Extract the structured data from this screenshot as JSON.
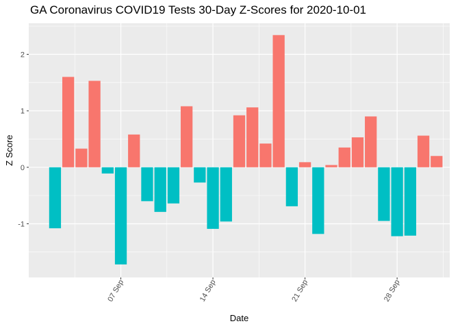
{
  "chart_data": {
    "type": "bar",
    "title": "GA Coronavirus COVID19 Tests 30-Day Z-Scores for 2020-10-01",
    "xlabel": "Date",
    "ylabel": "Z Score",
    "ylim": [
      -1.95,
      2.55
    ],
    "y_ticks": [
      -1,
      0,
      1,
      2
    ],
    "x_ticks": [
      {
        "date": "2020-09-07",
        "label": "07 Sep"
      },
      {
        "date": "2020-09-14",
        "label": "14 Sep"
      },
      {
        "date": "2020-09-21",
        "label": "21 Sep"
      },
      {
        "date": "2020-09-28",
        "label": "28 Sep"
      }
    ],
    "x_range": [
      "2020-08-31",
      "2020-10-02"
    ],
    "grid": true,
    "legend": "none",
    "colors": {
      "positive": "#f8766d",
      "negative": "#00bfc4",
      "panel": "#ebebeb",
      "grid": "#ffffff"
    },
    "x": [
      "2020-09-02",
      "2020-09-03",
      "2020-09-04",
      "2020-09-05",
      "2020-09-06",
      "2020-09-07",
      "2020-09-08",
      "2020-09-09",
      "2020-09-10",
      "2020-09-11",
      "2020-09-12",
      "2020-09-13",
      "2020-09-14",
      "2020-09-15",
      "2020-09-16",
      "2020-09-17",
      "2020-09-18",
      "2020-09-19",
      "2020-09-20",
      "2020-09-21",
      "2020-09-22",
      "2020-09-23",
      "2020-09-24",
      "2020-09-25",
      "2020-09-26",
      "2020-09-27",
      "2020-09-28",
      "2020-09-29",
      "2020-09-30",
      "2020-10-01"
    ],
    "values": [
      -1.08,
      1.6,
      0.33,
      1.53,
      -0.11,
      -1.72,
      0.58,
      -0.6,
      -0.79,
      -0.64,
      1.08,
      -0.27,
      -1.09,
      -0.96,
      0.92,
      1.06,
      0.42,
      2.34,
      -0.69,
      0.09,
      -1.18,
      0.04,
      0.35,
      0.53,
      0.9,
      -0.95,
      -1.22,
      -1.21,
      0.56,
      0.2
    ]
  }
}
